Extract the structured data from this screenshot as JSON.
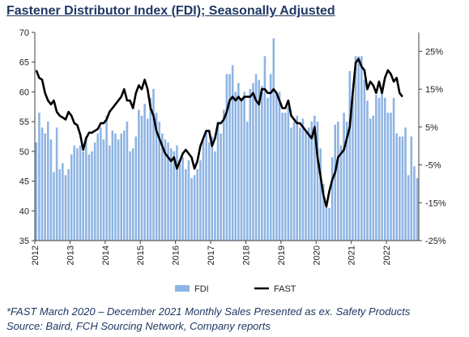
{
  "header": {
    "title": "Fastener Distributor Index (FDI); Seasonally Adjusted"
  },
  "footnotes": {
    "line1": "*FAST March 2020 – December 2021 Monthly Sales Presented as ex. Safety Products",
    "line2": "Source: Baird, FCH Sourcing Network, Company reports"
  },
  "chart_data": {
    "type": "bar",
    "title": "Fastener Distributor Index (FDI); Seasonally Adjusted",
    "x_ticks": [
      "2012",
      "2013",
      "2014",
      "2015",
      "2016",
      "2017",
      "2018",
      "2019",
      "2020",
      "2021",
      "2022"
    ],
    "x_range": [
      2012.0,
      2022.92
    ],
    "left_axis": {
      "ticks": [
        35,
        40,
        45,
        50,
        55,
        60,
        65,
        70
      ],
      "ylim": [
        35,
        70
      ]
    },
    "right_axis": {
      "ticks": [
        "-25%",
        "-15%",
        "-5%",
        "5%",
        "15%",
        "25%"
      ],
      "values": [
        -25,
        -15,
        -5,
        5,
        15,
        25
      ],
      "ylim": [
        -25,
        30
      ]
    },
    "grid": false,
    "legend_position": "bottom-center",
    "bar_color": "#8eb4e3",
    "line_color": "#000000",
    "series": [
      {
        "name": "FDI",
        "kind": "bar",
        "axis": "left",
        "start": 2012.0,
        "step_months": 1,
        "values": [
          51.5,
          56.5,
          54.0,
          53.0,
          55.0,
          52.0,
          46.5,
          54.0,
          47.0,
          48.0,
          46.0,
          47.0,
          49.5,
          51.0,
          50.5,
          51.0,
          50.0,
          52.5,
          49.5,
          50.0,
          51.5,
          53.0,
          54.0,
          52.0,
          56.0,
          51.0,
          53.5,
          53.0,
          52.0,
          53.0,
          53.5,
          55.0,
          50.0,
          50.5,
          52.5,
          57.0,
          56.0,
          58.0,
          55.5,
          59.0,
          60.5,
          56.5,
          55.0,
          53.0,
          52.0,
          51.5,
          50.5,
          50.0,
          51.0,
          48.5,
          49.0,
          47.0,
          48.5,
          45.5,
          46.0,
          47.0,
          48.5,
          52.0,
          53.5,
          51.5,
          52.5,
          50.0,
          55.0,
          53.0,
          57.0,
          63.0,
          63.0,
          64.5,
          60.0,
          61.5,
          59.0,
          60.0,
          55.0,
          60.5,
          61.5,
          63.0,
          62.0,
          61.0,
          66.0,
          59.0,
          63.0,
          69.0,
          60.0,
          60.0,
          56.5,
          56.5,
          57.5,
          54.0,
          55.0,
          56.0,
          54.0,
          55.5,
          53.5,
          54.0,
          55.0,
          56.0,
          55.0,
          50.5,
          44.5,
          41.0,
          40.5,
          49.0,
          54.5,
          55.0,
          51.0,
          56.5,
          55.0,
          63.5,
          59.5,
          66.0,
          66.0,
          66.0,
          62.0,
          58.5,
          55.5,
          56.0,
          59.5,
          59.0,
          60.0,
          59.0,
          56.5,
          56.5,
          59.0,
          53.0,
          52.5,
          52.5,
          54.0,
          46.0,
          52.5,
          47.5,
          45.5
        ]
      },
      {
        "name": "FAST",
        "kind": "line",
        "axis": "right",
        "start": 2012.0,
        "step_months": 1,
        "values": [
          20,
          18,
          17.5,
          14,
          12,
          11,
          12,
          9,
          8,
          7.5,
          7,
          9,
          8,
          6,
          5.5,
          3,
          -1,
          2,
          3.5,
          3.5,
          4,
          4.5,
          6,
          6,
          7,
          9,
          10,
          11,
          12,
          13,
          15,
          12,
          12,
          10,
          14,
          16,
          15,
          17.5,
          15,
          10,
          8,
          4,
          2,
          0,
          -2,
          -3,
          -4,
          -3,
          -6,
          -4,
          -2,
          -1,
          -2,
          -3,
          -6,
          -4,
          0,
          2,
          4,
          4,
          0,
          2,
          6,
          6,
          7,
          9,
          12,
          13,
          12,
          13,
          12,
          13,
          13,
          13,
          14,
          12,
          11,
          15,
          15,
          14,
          14,
          15,
          14,
          12,
          10,
          10,
          12,
          8,
          7,
          6,
          6,
          5,
          4,
          3,
          2,
          5,
          -3,
          -8,
          -13,
          -16,
          -12,
          -9,
          -7,
          -3,
          -2,
          -1,
          2,
          5,
          14,
          22,
          23,
          21,
          20,
          15,
          17,
          16,
          14,
          17,
          14,
          18,
          20,
          19,
          17,
          18,
          14,
          13
        ]
      }
    ]
  }
}
